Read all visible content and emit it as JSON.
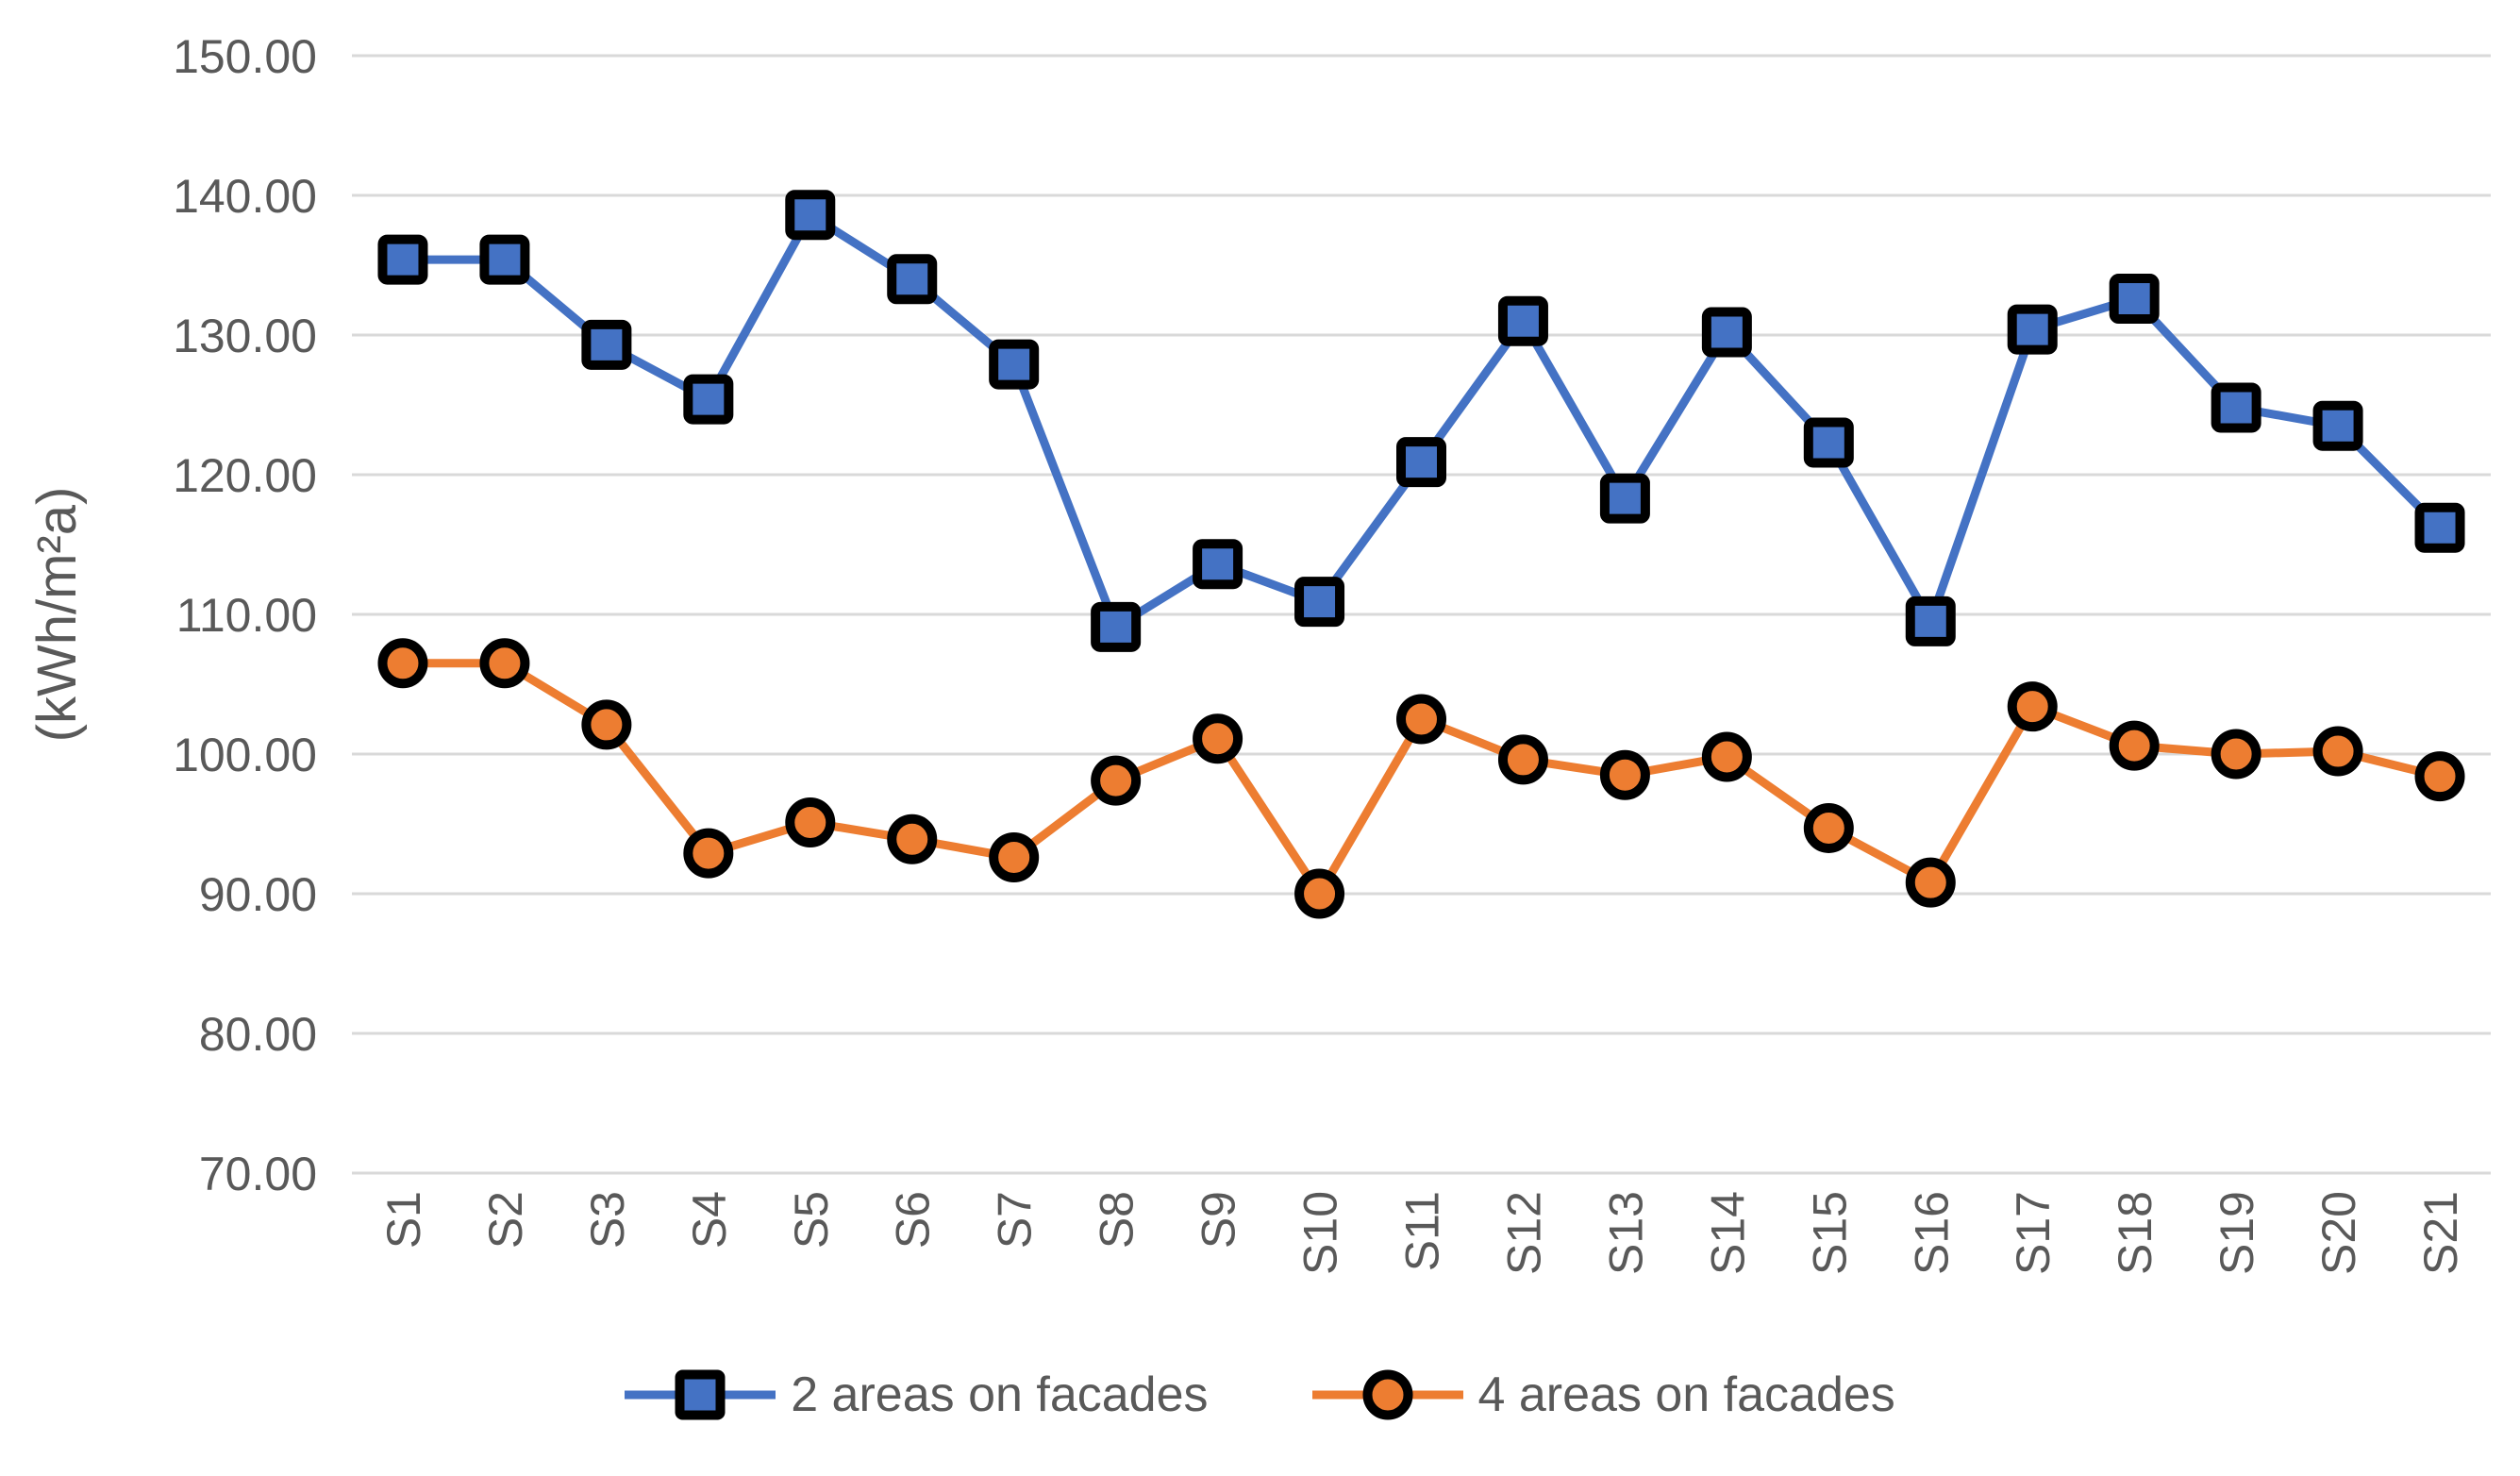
{
  "chart_data": {
    "type": "line",
    "title": "",
    "categories": [
      "S1",
      "S2",
      "S3",
      "S4",
      "S5",
      "S6",
      "S7",
      "S8",
      "S9",
      "S10",
      "S11",
      "S12",
      "S13",
      "S14",
      "S15",
      "S16",
      "S17",
      "S18",
      "S19",
      "S20",
      "S21"
    ],
    "series": [
      {
        "name": "2 areas on facades",
        "color": "#4472C4",
        "marker": "square",
        "values": [
          135.4,
          135.4,
          129.3,
          125.4,
          138.6,
          134.0,
          127.9,
          109.1,
          113.6,
          110.9,
          120.9,
          131.0,
          118.3,
          130.2,
          122.3,
          109.5,
          130.4,
          132.6,
          124.8,
          123.5,
          116.2
        ]
      },
      {
        "name": "4 areas on facades",
        "color": "#ED7D31",
        "marker": "circle",
        "values": [
          106.5,
          106.5,
          102.1,
          92.9,
          95.1,
          93.9,
          92.6,
          98.1,
          101.1,
          90.0,
          102.5,
          99.6,
          98.5,
          99.8,
          94.7,
          90.8,
          103.4,
          100.6,
          100.0,
          100.2,
          98.4
        ]
      }
    ],
    "xlabel": "",
    "ylabel": "(kWh/m²a)",
    "ylim": [
      70,
      150
    ],
    "ytick_step": 10,
    "y_ticks": [
      "150.00",
      "140.00",
      "130.00",
      "120.00",
      "110.00",
      "100.00",
      "90.00",
      "80.00",
      "70.00"
    ],
    "grid": "horizontal",
    "legend_position": "bottom",
    "colors": {
      "grid": "#D9D9D9",
      "text": "#595959",
      "marker_outline": "#000000",
      "background": "#FFFFFF"
    }
  }
}
